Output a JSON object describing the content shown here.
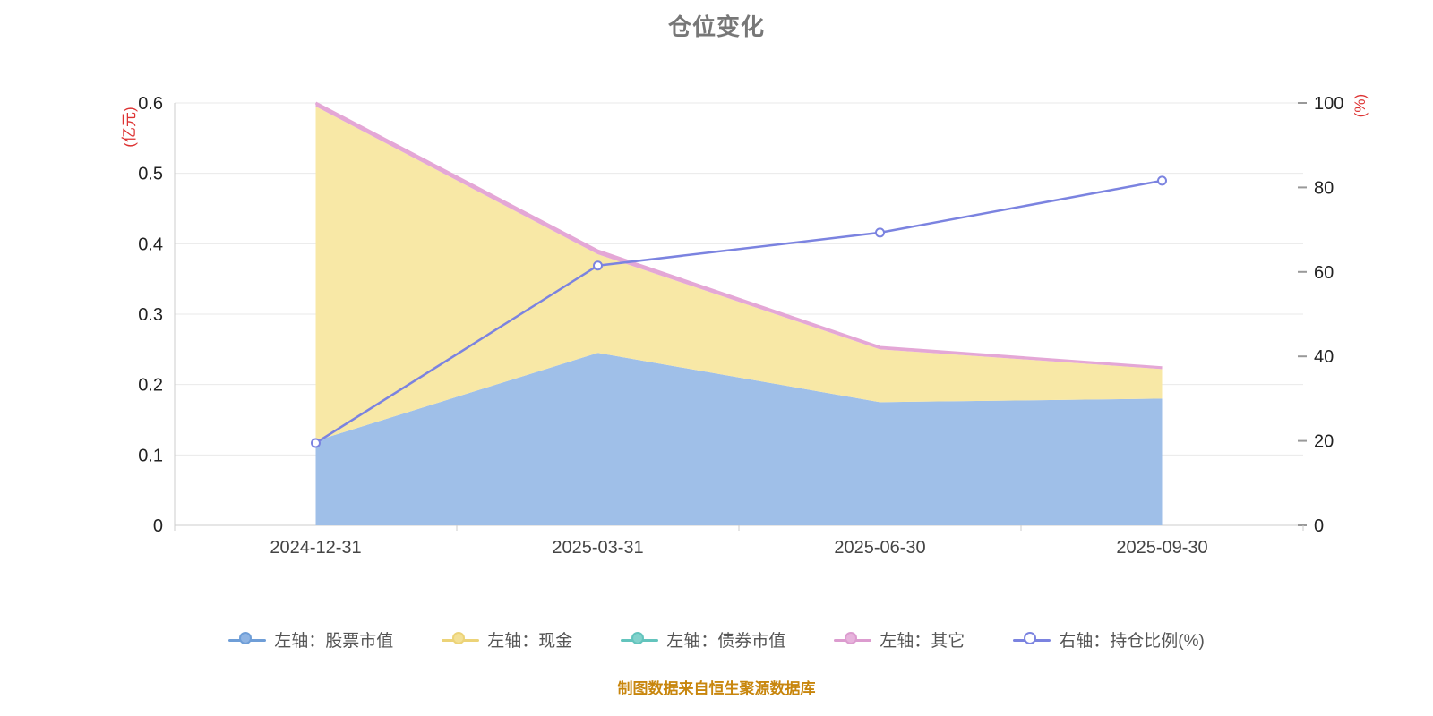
{
  "title": "仓位变化",
  "source_note": "制图数据来自恒生聚源数据库",
  "left_axis": {
    "unit": "(亿元)",
    "ticks": [
      0,
      0.1,
      0.2,
      0.3,
      0.4,
      0.5,
      0.6
    ],
    "lim": [
      0,
      0.6
    ]
  },
  "right_axis": {
    "unit": "(%)",
    "ticks": [
      0,
      20,
      40,
      60,
      80,
      100
    ],
    "lim": [
      0,
      100
    ]
  },
  "legend": {
    "items": [
      {
        "label": "左轴：股票市值",
        "color": "#6f9ed7",
        "dot_fill": "#8fb4e3"
      },
      {
        "label": "左轴：现金",
        "color": "#ecd378",
        "dot_fill": "#f3e095"
      },
      {
        "label": "左轴：债券市值",
        "color": "#63c4bd",
        "dot_fill": "#82d2cc"
      },
      {
        "label": "左轴：其它",
        "color": "#dc9ccf",
        "dot_fill": "#e7b3dc"
      },
      {
        "label": "右轴：持仓比例(%)",
        "color": "#7b83e0",
        "dot_fill": "#ffffff"
      }
    ]
  },
  "chart_data": {
    "type": "area",
    "title": "仓位变化",
    "categories": [
      "2024-12-31",
      "2025-03-31",
      "2025-06-30",
      "2025-09-30"
    ],
    "series": [
      {
        "name": "股票市值",
        "axis": "left",
        "stacked": true,
        "values": [
          0.12,
          0.245,
          0.175,
          0.18
        ],
        "color": "#9fbfe8"
      },
      {
        "name": "现金",
        "axis": "left",
        "stacked": true,
        "values": [
          0.475,
          0.14,
          0.075,
          0.042
        ],
        "color": "#f8e8a6"
      },
      {
        "name": "债券市值",
        "axis": "left",
        "stacked": true,
        "values": [
          0,
          0,
          0,
          0
        ],
        "color": "#82d2cc"
      },
      {
        "name": "其它",
        "axis": "left",
        "stacked": true,
        "values": [
          0.005,
          0.005,
          0.003,
          0.002
        ],
        "color": "#e4a7d6"
      },
      {
        "name": "持仓比例(%)",
        "axis": "right",
        "type": "line",
        "values": [
          19.5,
          61.5,
          69.3,
          81.6
        ],
        "color": "#7b83e0",
        "marker_fill": "#ffffff"
      }
    ],
    "left_ylim": [
      0,
      0.6
    ],
    "right_ylim": [
      0,
      100
    ],
    "grid": true,
    "legend_position": "bottom",
    "xlabel": "",
    "ylabel_left": "(亿元)",
    "ylabel_right": "(%)"
  },
  "colors": {
    "grid": "#e9e9e9",
    "axis_line": "#cccccc",
    "right_tick_mark": "#999999",
    "tick_text": "#222222",
    "xlabel_text": "#444444",
    "unit_text": "#dd3333",
    "title_text": "#777777",
    "source_text": "#c8860d",
    "legend_text": "#555555"
  }
}
